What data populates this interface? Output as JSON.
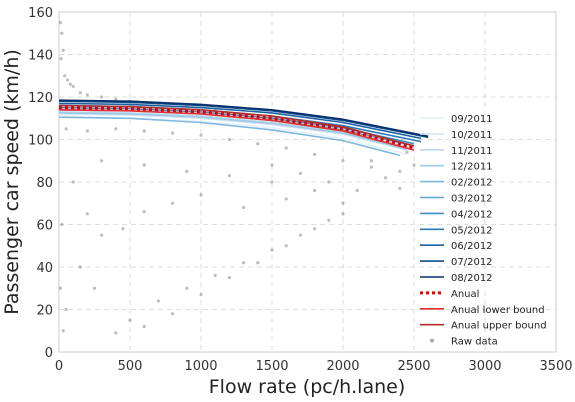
{
  "chart_data": {
    "type": "scatter",
    "title": "",
    "xlabel": "Flow rate (pc/h.lane)",
    "ylabel": "Passenger car speed (km/h)",
    "xlim": [
      0,
      3500
    ],
    "ylim": [
      0,
      160
    ],
    "xticks": [
      0,
      500,
      1000,
      1500,
      2000,
      2500,
      3000,
      3500
    ],
    "yticks": [
      0,
      20,
      40,
      60,
      80,
      100,
      120,
      140,
      160
    ],
    "xtick_labels": [
      "0",
      "500",
      "1000",
      "1500",
      "2000",
      "2500",
      "3000",
      "3500"
    ],
    "ytick_labels": [
      "0",
      "20",
      "40",
      "60",
      "80",
      "100",
      "120",
      "140",
      "160"
    ],
    "grid": true,
    "legend_position": "right",
    "series": [
      {
        "name": "09/2011",
        "kind": "line",
        "color": "#e6f0fa",
        "points": [
          [
            0,
            111
          ],
          [
            500,
            110
          ],
          [
            1000,
            108.5
          ],
          [
            1500,
            105.5
          ],
          [
            2000,
            100.5
          ],
          [
            2450,
            93
          ]
        ]
      },
      {
        "name": "10/2011",
        "kind": "line",
        "color": "#d4e6f6",
        "points": [
          [
            0,
            112
          ],
          [
            500,
            111.5
          ],
          [
            1000,
            110
          ],
          [
            1500,
            107
          ],
          [
            2000,
            102.5
          ],
          [
            2450,
            95
          ]
        ]
      },
      {
        "name": "11/2011",
        "kind": "line",
        "color": "#bdd8ef",
        "points": [
          [
            0,
            113
          ],
          [
            500,
            112.5
          ],
          [
            1000,
            111
          ],
          [
            1500,
            108
          ],
          [
            2000,
            103.5
          ],
          [
            2500,
            96
          ]
        ]
      },
      {
        "name": "12/2011",
        "kind": "line",
        "color": "#9ec9e5",
        "points": [
          [
            0,
            112.5
          ],
          [
            500,
            112
          ],
          [
            1000,
            110.5
          ],
          [
            1500,
            107.5
          ],
          [
            2000,
            103
          ],
          [
            2450,
            95.5
          ]
        ]
      },
      {
        "name": "02/2012",
        "kind": "line",
        "color": "#7fb8de",
        "points": [
          [
            0,
            110.5
          ],
          [
            500,
            110
          ],
          [
            1000,
            108
          ],
          [
            1500,
            104.5
          ],
          [
            2000,
            99.5
          ],
          [
            2400,
            92.5
          ]
        ]
      },
      {
        "name": "03/2012",
        "kind": "line",
        "color": "#5fa3d3",
        "points": [
          [
            0,
            114
          ],
          [
            500,
            113.5
          ],
          [
            1000,
            112
          ],
          [
            1500,
            109
          ],
          [
            2000,
            104.5
          ],
          [
            2500,
            97
          ]
        ]
      },
      {
        "name": "04/2012",
        "kind": "line",
        "color": "#428ec6",
        "points": [
          [
            0,
            115
          ],
          [
            500,
            114.5
          ],
          [
            1000,
            113
          ],
          [
            1500,
            110
          ],
          [
            2000,
            105.5
          ],
          [
            2500,
            98
          ]
        ]
      },
      {
        "name": "05/2012",
        "kind": "line",
        "color": "#2c79b7",
        "points": [
          [
            0,
            116
          ],
          [
            500,
            115.5
          ],
          [
            1000,
            114
          ],
          [
            1500,
            111
          ],
          [
            2000,
            106.5
          ],
          [
            2550,
            99
          ]
        ]
      },
      {
        "name": "06/2012",
        "kind": "line",
        "color": "#1c62a3",
        "points": [
          [
            0,
            117
          ],
          [
            500,
            116.5
          ],
          [
            1000,
            115
          ],
          [
            1500,
            112.5
          ],
          [
            2000,
            108
          ],
          [
            2550,
            100.5
          ]
        ]
      },
      {
        "name": "07/2012",
        "kind": "line",
        "color": "#0f4b8a",
        "points": [
          [
            0,
            118
          ],
          [
            500,
            117.5
          ],
          [
            1000,
            116
          ],
          [
            1500,
            113.5
          ],
          [
            2000,
            109
          ],
          [
            2600,
            101
          ]
        ]
      },
      {
        "name": "08/2012",
        "kind": "line",
        "color": "#08306b",
        "points": [
          [
            0,
            118.5
          ],
          [
            500,
            118
          ],
          [
            1000,
            116.5
          ],
          [
            1500,
            114
          ],
          [
            2000,
            109.5
          ],
          [
            2600,
            101.5
          ]
        ]
      },
      {
        "name": "Anual",
        "kind": "dotted",
        "color": "#e00000",
        "points": [
          [
            0,
            115
          ],
          [
            500,
            114.5
          ],
          [
            1000,
            113
          ],
          [
            1500,
            110
          ],
          [
            2000,
            105
          ],
          [
            2500,
            96
          ]
        ]
      },
      {
        "name": "Anual lower bound",
        "kind": "line",
        "color": "#e03030",
        "points": [
          [
            0,
            114
          ],
          [
            500,
            113.5
          ],
          [
            1000,
            112
          ],
          [
            1500,
            109
          ],
          [
            2000,
            104
          ],
          [
            2500,
            95
          ]
        ]
      },
      {
        "name": "Anual upper bound",
        "kind": "line",
        "color": "#b03030",
        "points": [
          [
            0,
            116
          ],
          [
            500,
            115.5
          ],
          [
            1000,
            114
          ],
          [
            1500,
            111
          ],
          [
            2000,
            106
          ],
          [
            2500,
            97
          ]
        ]
      },
      {
        "name": "Raw data",
        "kind": "scatter",
        "color": "#888888",
        "points": [
          [
            10,
            155
          ],
          [
            20,
            150
          ],
          [
            30,
            142
          ],
          [
            15,
            138
          ],
          [
            40,
            130
          ],
          [
            60,
            128
          ],
          [
            80,
            126
          ],
          [
            100,
            125
          ],
          [
            150,
            122
          ],
          [
            200,
            121
          ],
          [
            300,
            120
          ],
          [
            400,
            119
          ],
          [
            500,
            118
          ],
          [
            700,
            117
          ],
          [
            900,
            116
          ],
          [
            1100,
            114
          ],
          [
            1300,
            112
          ],
          [
            1500,
            110
          ],
          [
            1700,
            108
          ],
          [
            1900,
            105
          ],
          [
            2100,
            102
          ],
          [
            2300,
            98
          ],
          [
            2450,
            94
          ],
          [
            50,
            105
          ],
          [
            200,
            104
          ],
          [
            400,
            105
          ],
          [
            600,
            104
          ],
          [
            800,
            103
          ],
          [
            1000,
            102
          ],
          [
            1200,
            100
          ],
          [
            1400,
            98
          ],
          [
            1600,
            96
          ],
          [
            1800,
            93
          ],
          [
            2000,
            90
          ],
          [
            2200,
            87
          ],
          [
            2400,
            85
          ],
          [
            300,
            90
          ],
          [
            600,
            88
          ],
          [
            900,
            85
          ],
          [
            1200,
            83
          ],
          [
            1500,
            80
          ],
          [
            1800,
            76
          ],
          [
            2000,
            70
          ],
          [
            1900,
            62
          ],
          [
            1700,
            55
          ],
          [
            1500,
            48
          ],
          [
            1300,
            42
          ],
          [
            1100,
            36
          ],
          [
            900,
            30
          ],
          [
            700,
            24
          ],
          [
            500,
            15
          ],
          [
            400,
            9
          ],
          [
            600,
            12
          ],
          [
            800,
            18
          ],
          [
            1000,
            27
          ],
          [
            1200,
            35
          ],
          [
            1400,
            42
          ],
          [
            1600,
            50
          ],
          [
            1800,
            58
          ],
          [
            2000,
            65
          ],
          [
            100,
            80
          ],
          [
            200,
            65
          ],
          [
            300,
            55
          ],
          [
            150,
            40
          ],
          [
            250,
            30
          ],
          [
            50,
            20
          ],
          [
            30,
            10
          ],
          [
            20,
            60
          ],
          [
            10,
            30
          ],
          [
            1500,
            88
          ],
          [
            1700,
            84
          ],
          [
            1900,
            80
          ],
          [
            2100,
            76
          ],
          [
            2300,
            82
          ],
          [
            2200,
            90
          ],
          [
            1600,
            72
          ],
          [
            1300,
            68
          ],
          [
            1000,
            74
          ],
          [
            800,
            70
          ],
          [
            600,
            66
          ],
          [
            450,
            58
          ],
          [
            2400,
            77
          ],
          [
            2500,
            88
          ]
        ]
      }
    ]
  }
}
